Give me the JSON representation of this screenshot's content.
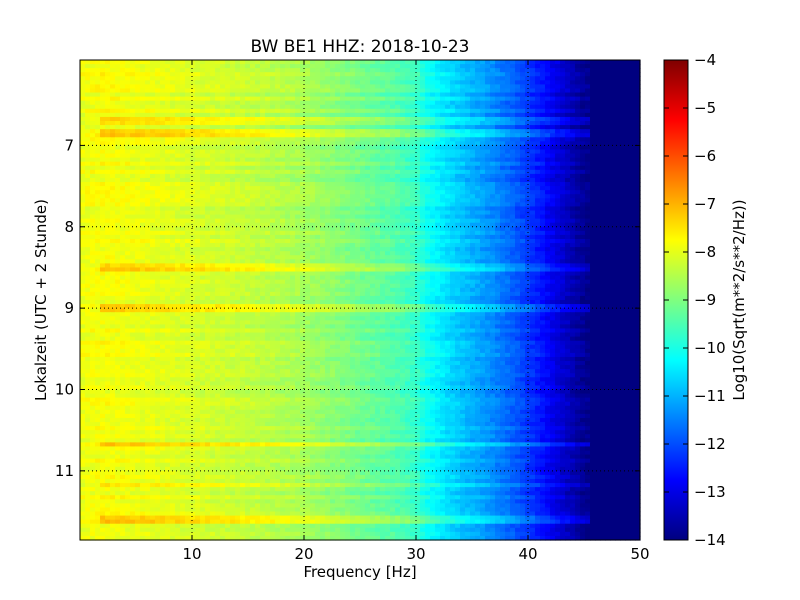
{
  "chart_data": {
    "type": "heatmap",
    "title": "BW BE1 HHZ: 2018-10-23",
    "xlabel": "Frequency [Hz]",
    "ylabel": "Lokalzeit (UTC + 2 Stunde)",
    "xlim": [
      0,
      50
    ],
    "ylim": [
      11.85,
      5.95
    ],
    "y_inverted": true,
    "x_ticks": [
      10,
      20,
      30,
      40,
      50
    ],
    "y_ticks": [
      7,
      8,
      9,
      10,
      11
    ],
    "grid": true,
    "colormap": "jet",
    "colorbar": {
      "label": "Log10(Sqrt(m**2/s**2/Hz))",
      "range": [
        -14,
        -4
      ],
      "ticks": [
        -4,
        -5,
        -6,
        -7,
        -8,
        -9,
        -10,
        -11,
        -12,
        -13,
        -14
      ]
    },
    "spectrum_profile": {
      "frequency_hz": [
        0,
        2,
        5,
        10,
        15,
        20,
        25,
        28,
        30,
        31,
        33,
        35,
        37,
        39,
        41,
        43,
        45,
        46,
        50
      ],
      "log10_amplitude": [
        -7.9,
        -7.8,
        -7.9,
        -8.1,
        -8.3,
        -8.6,
        -9.1,
        -9.4,
        -9.7,
        -10.1,
        -10.6,
        -11.0,
        -11.4,
        -11.9,
        -12.5,
        -13.2,
        -13.8,
        -14.0,
        -14.0
      ]
    },
    "bright_bands_local_hour": [
      6.7,
      6.85,
      8.5,
      9.0,
      10.67,
      11.17,
      11.6
    ]
  }
}
